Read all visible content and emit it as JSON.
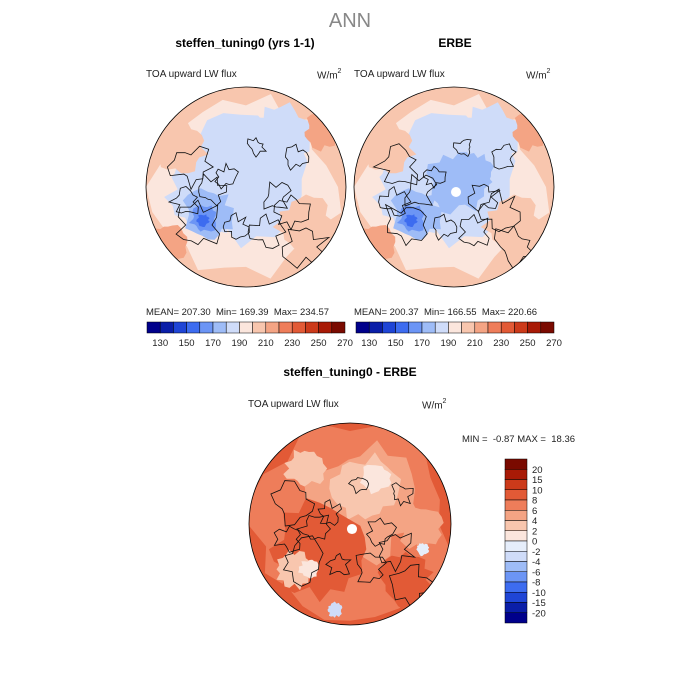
{
  "figure": {
    "suptitle": "ANN"
  },
  "panels": [
    {
      "id": "model",
      "title": "steffen_tuning0 (yrs 1-1)",
      "field_label": "TOA upward LW flux",
      "unit_base": "W/m",
      "unit_exp": "2",
      "stats": {
        "mean_label": "MEAN=",
        "mean": "207.30",
        "min_label": "Min=",
        "min": "169.39",
        "max_label": "Max=",
        "max": "234.57"
      },
      "pole_hole": false
    },
    {
      "id": "obs",
      "title": "ERBE",
      "field_label": "TOA upward LW flux",
      "unit_base": "W/m",
      "unit_exp": "2",
      "stats": {
        "mean_label": "MEAN=",
        "mean": "200.37",
        "min_label": "Min=",
        "min": "166.55",
        "max_label": "Max=",
        "max": "220.66"
      },
      "pole_hole": true
    },
    {
      "id": "diff",
      "title": "steffen_tuning0 - ERBE",
      "field_label": "TOA upward LW flux",
      "unit_base": "W/m",
      "unit_exp": "2",
      "stats": {
        "min_label": "MIN =",
        "min": "-0.87",
        "max_label": "MAX =",
        "max": "18.36"
      },
      "pole_hole": true
    }
  ],
  "colorbars": {
    "absolute": {
      "colors": [
        "#00008b",
        "#0a1ea8",
        "#1f45d6",
        "#3d6cf0",
        "#6c95f5",
        "#9ebcf7",
        "#cfdcf9",
        "#fbe6dd",
        "#f8c6ae",
        "#f4a484",
        "#ee7d5a",
        "#e25a36",
        "#cc3a1a",
        "#a81a06",
        "#7a0a00"
      ],
      "labels": [
        "130",
        "150",
        "170",
        "190",
        "210",
        "230",
        "250",
        "270"
      ]
    },
    "difference": {
      "colors": [
        "#00008b",
        "#0a1ea8",
        "#1f45d6",
        "#3d6cf0",
        "#6c95f5",
        "#9ebcf7",
        "#cfdcf9",
        "#e6eefb",
        "#fbe6dd",
        "#f8c6ae",
        "#f4a484",
        "#ee7d5a",
        "#e25a36",
        "#cc3a1a",
        "#a81a06",
        "#7a0a00"
      ],
      "labels": [
        "-20",
        "-15",
        "-10",
        "-8",
        "-6",
        "-4",
        "-2",
        "0",
        "2",
        "4",
        "6",
        "8",
        "10",
        "15",
        "20"
      ]
    }
  },
  "chart_data": [
    {
      "type": "heatmap",
      "projection": "north-polar-stereographic",
      "title": "steffen_tuning0 (yrs 1-1)",
      "variable": "TOA upward LW flux",
      "units": "W/m2",
      "levels": [
        130,
        150,
        170,
        190,
        210,
        230,
        250,
        270
      ],
      "mean": 207.3,
      "min": 169.39,
      "max": 234.57
    },
    {
      "type": "heatmap",
      "projection": "north-polar-stereographic",
      "title": "ERBE",
      "variable": "TOA upward LW flux",
      "units": "W/m2",
      "levels": [
        130,
        150,
        170,
        190,
        210,
        230,
        250,
        270
      ],
      "mean": 200.37,
      "min": 166.55,
      "max": 220.66
    },
    {
      "type": "heatmap",
      "projection": "north-polar-stereographic",
      "title": "steffen_tuning0 - ERBE",
      "variable": "TOA upward LW flux",
      "units": "W/m2",
      "levels": [
        -20,
        -15,
        -10,
        -8,
        -6,
        -4,
        -2,
        0,
        2,
        4,
        6,
        8,
        10,
        15,
        20
      ],
      "min": -0.87,
      "max": 18.36
    }
  ]
}
